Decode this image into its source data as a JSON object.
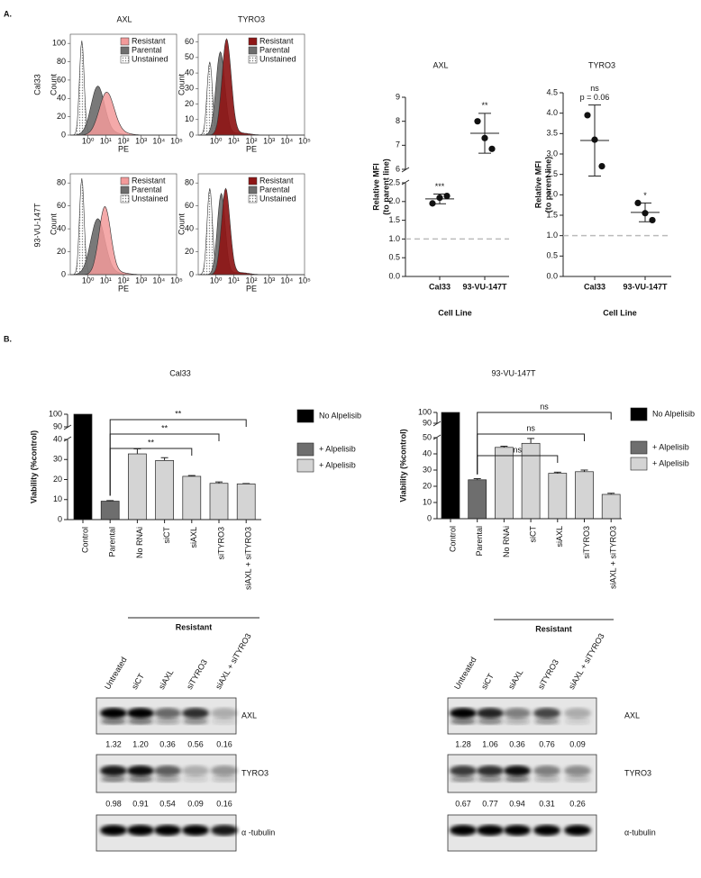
{
  "panel_labels": [
    "A.",
    "B."
  ],
  "flow": {
    "columns": [
      "AXL",
      "TYRO3"
    ],
    "rows": [
      "Cal33",
      "93-VU-147T"
    ],
    "legend": [
      "Resistant",
      "Parental",
      "Unstained"
    ],
    "resistant_colors": [
      "#f29a9a",
      "#8e1616"
    ],
    "parental_color": "#6e6e6e",
    "y_label": "Count",
    "x_label": "PE",
    "xlim": [
      0.1,
      100000
    ],
    "xticks": [
      {
        "value": 1,
        "label": "10⁰"
      },
      {
        "value": 10,
        "label": "10¹"
      },
      {
        "value": 100,
        "label": "10²"
      },
      {
        "value": 1000,
        "label": "10³"
      },
      {
        "value": 10000,
        "label": "10⁴"
      },
      {
        "value": 100000,
        "label": "10⁵"
      }
    ],
    "plots": [
      {
        "ylim": [
          0,
          110
        ],
        "yticks": [
          0,
          20,
          40,
          60,
          80,
          100
        ]
      },
      {
        "ylim": [
          0,
          65
        ],
        "yticks": [
          0,
          10,
          20,
          30,
          40,
          50,
          60
        ]
      },
      {
        "ylim": [
          0,
          88
        ],
        "yticks": [
          0,
          20,
          40,
          60,
          80
        ]
      },
      {
        "ylim": [
          0,
          88
        ],
        "yticks": [
          0,
          20,
          40,
          60,
          80
        ]
      }
    ]
  },
  "chart_data": [
    {
      "type": "dot",
      "title": "AXL",
      "y_label": [
        "Relative MFI",
        "(to parent line)"
      ],
      "x_label": "Cell Line",
      "categories": [
        "Cal33",
        "93-VU-147T"
      ],
      "points": [
        [
          1.95,
          2.15,
          2.1
        ],
        [
          8.0,
          6.85,
          7.3
        ]
      ],
      "means": [
        2.07,
        7.5
      ],
      "errors": [
        0.13,
        0.83
      ],
      "annotations": [
        [
          "***"
        ],
        [
          "**"
        ]
      ],
      "reference_line": 1,
      "ylim": [
        0,
        9
      ],
      "ybreak": [
        2.5,
        6
      ],
      "yticks": [
        {
          "value": 0,
          "label": "0.0"
        },
        0.5,
        {
          "value": 1,
          "label": "1.0"
        },
        1.5,
        {
          "value": 2,
          "label": "2.0"
        },
        2.5,
        6,
        7,
        8,
        9
      ]
    },
    {
      "type": "dot",
      "title": "TYRO3",
      "y_label": [
        "Relative MFI",
        "(to parent line)"
      ],
      "x_label": "Cell Line",
      "categories": [
        "Cal33",
        "93-VU-147T"
      ],
      "points": [
        [
          3.95,
          2.7,
          3.35
        ],
        [
          1.8,
          1.38,
          1.55
        ]
      ],
      "means": [
        3.33,
        1.57
      ],
      "errors": [
        0.87,
        0.23
      ],
      "annotations": [
        [
          "ns",
          "p = 0.06"
        ],
        [
          "*"
        ]
      ],
      "reference_line": 1,
      "ylim": [
        0,
        4.5
      ],
      "yticks": [
        {
          "value": 0,
          "label": "0.0"
        },
        0.5,
        {
          "value": 1,
          "label": "1.0"
        },
        1.5,
        {
          "value": 2,
          "label": "2.0"
        },
        2.5,
        {
          "value": 3,
          "label": "3.0"
        },
        3.5,
        {
          "value": 4,
          "label": "4.0"
        },
        4.5
      ]
    },
    {
      "type": "bar",
      "title": "Cal33",
      "y_label": "Viability (%control)",
      "group_label": "Resistant",
      "categories": [
        "Control",
        "Parental",
        "No RNAi",
        "siCT",
        "siAXL",
        "siTYRO3",
        "siAXL + siTYRO3"
      ],
      "values": [
        100,
        9.2,
        32.8,
        29.5,
        21.6,
        18.1,
        17.8
      ],
      "errors": [
        null,
        0.3,
        2.5,
        1.4,
        0.4,
        0.7,
        0.2
      ],
      "colors": [
        "#000000",
        "#6e6e6e",
        "#d4d4d4",
        "#d4d4d4",
        "#d4d4d4",
        "#d4d4d4",
        "#d4d4d4"
      ],
      "significance": [
        "**",
        "**",
        "**"
      ],
      "legend": [
        {
          "name": "No Alpelisib",
          "color": "#000000"
        },
        {
          "name": "+ Alpelisib",
          "color": "#6e6e6e"
        },
        {
          "name": "+ Alpelisib",
          "color": "#d4d4d4"
        }
      ],
      "ylim": [
        0,
        100
      ],
      "ybreak": [
        40,
        90
      ],
      "yticks": [
        0,
        10,
        20,
        30,
        40,
        90,
        100
      ]
    },
    {
      "type": "bar",
      "title": "93-VU-147T",
      "y_label": "Viability (%control)",
      "group_label": "Resistant",
      "categories": [
        "Control",
        "Parental",
        "No RNAi",
        "siCT",
        "siAXL",
        "siTYRO3",
        "siAXL + siTYRO3"
      ],
      "values": [
        100,
        24,
        44,
        46.5,
        28,
        29,
        15
      ],
      "errors": [
        null,
        0.7,
        0.7,
        3,
        0.7,
        1,
        0.7
      ],
      "colors": [
        "#000000",
        "#6e6e6e",
        "#d4d4d4",
        "#d4d4d4",
        "#d4d4d4",
        "#d4d4d4",
        "#d4d4d4"
      ],
      "significance": [
        "ns",
        "ns",
        "ns"
      ],
      "legend": [
        {
          "name": "No Alpelisib",
          "color": "#000000"
        },
        {
          "name": "+ Alpelisib",
          "color": "#6e6e6e"
        },
        {
          "name": "+ Alpelisib",
          "color": "#d4d4d4"
        }
      ],
      "ylim": [
        0,
        100
      ],
      "ybreak": [
        50,
        90
      ],
      "yticks": [
        0,
        10,
        20,
        30,
        40,
        50,
        90,
        100
      ]
    }
  ],
  "blots": [
    {
      "lanes": [
        "Untreated",
        "siCT",
        "siAXL",
        "siTYRO3",
        "siAXL + siTYRO3"
      ],
      "rows": [
        {
          "protein": "AXL",
          "values": [
            "1.32",
            "1.20",
            "0.36",
            "0.56",
            "0.16"
          ]
        },
        {
          "protein": "TYRO3",
          "values": [
            "0.98",
            "0.91",
            "0.54",
            "0.09",
            "0.16"
          ]
        },
        {
          "protein": "α -tubulin"
        }
      ]
    },
    {
      "lanes": [
        "Untreated",
        "siCT",
        "siAXL",
        "siTYRO3",
        "siAXL + siTYRO3"
      ],
      "rows": [
        {
          "protein": "AXL",
          "values": [
            "1.28",
            "1.06",
            "0.36",
            "0.76",
            "0.09"
          ]
        },
        {
          "protein": "TYRO3",
          "values": [
            "0.67",
            "0.77",
            "0.94",
            "0.31",
            "0.26"
          ]
        },
        {
          "protein": "α-tubulin"
        }
      ]
    }
  ]
}
